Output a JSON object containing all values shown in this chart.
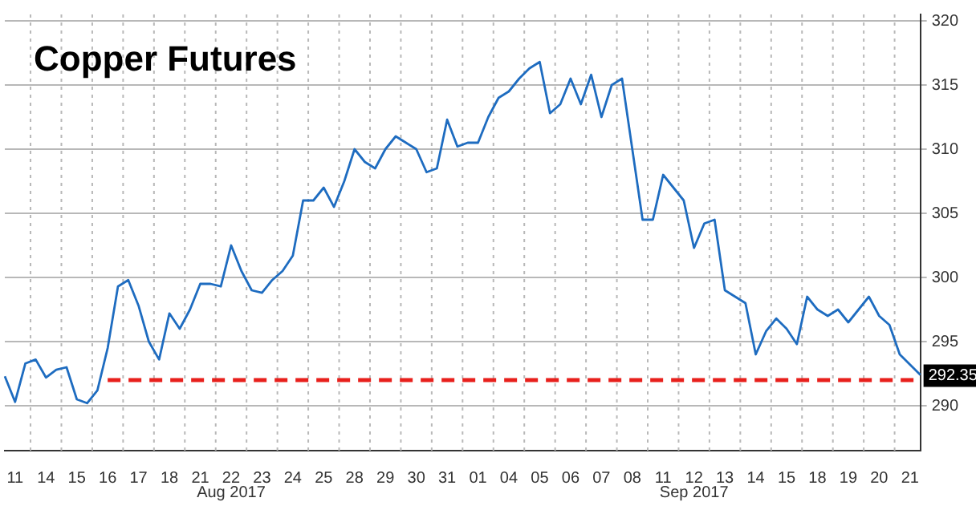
{
  "chart_data": {
    "type": "line",
    "title": "Copper Futures",
    "categories": [
      null,
      "11",
      null,
      null,
      "14",
      null,
      null,
      "15",
      null,
      null,
      "16",
      null,
      null,
      "17",
      null,
      null,
      "18",
      null,
      null,
      "21",
      null,
      null,
      "22",
      null,
      null,
      "23",
      null,
      null,
      "24",
      null,
      null,
      "25",
      null,
      null,
      "28",
      null,
      null,
      "29",
      null,
      null,
      "30",
      null,
      null,
      "31",
      null,
      null,
      "01",
      null,
      null,
      "04",
      null,
      null,
      "05",
      null,
      null,
      "06",
      null,
      null,
      "07",
      null,
      null,
      "08",
      null,
      null,
      "11",
      null,
      null,
      "12",
      null,
      null,
      "13",
      null,
      null,
      "14",
      null,
      null,
      "15",
      null,
      null,
      "18",
      null,
      null,
      "19",
      null,
      null,
      "20",
      null,
      null,
      "21",
      null
    ],
    "series": [
      {
        "color": "#1e6cc0",
        "values": [
          292.3,
          290.3,
          293.3,
          293.6,
          292.2,
          292.8,
          293,
          290.5,
          290.2,
          291.2,
          294.5,
          299.3,
          299.8,
          297.8,
          295,
          293.6,
          297.2,
          296,
          297.5,
          299.5,
          299.5,
          299.3,
          302.5,
          300.5,
          299,
          298.8,
          299.8,
          300.5,
          301.7,
          306,
          306,
          307,
          305.5,
          307.5,
          310,
          309,
          308.5,
          310,
          311,
          310.5,
          310,
          308.2,
          308.5,
          312.3,
          310.2,
          310.5,
          310.5,
          312.5,
          314,
          314.5,
          315.5,
          316.3,
          316.8,
          312.8,
          313.5,
          315.5,
          313.5,
          315.8,
          312.5,
          315,
          315.5,
          310,
          304.5,
          304.5,
          308,
          307,
          306,
          302.3,
          304.2,
          304.5,
          299,
          298.5,
          298,
          294,
          295.8,
          296.8,
          296,
          294.8,
          298.5,
          297.5,
          297,
          297.5,
          296.5,
          297.5,
          298.5,
          297,
          296.3,
          294,
          293.2,
          292.4
        ]
      }
    ],
    "ylim": [
      286.5,
      320.5
    ],
    "yticks": [
      290,
      295,
      300,
      305,
      310,
      315,
      320
    ],
    "grid": true,
    "legend": false,
    "marker": "none",
    "line_style": "solid",
    "ref_lines": [
      {
        "axis": "y",
        "value": 292,
        "color": "#e8201c",
        "line_style": "dashed"
      }
    ],
    "annotations": [
      "Aug 2017",
      "Sep 2017",
      {
        "text": "292.35",
        "y": 292.35
      }
    ]
  }
}
